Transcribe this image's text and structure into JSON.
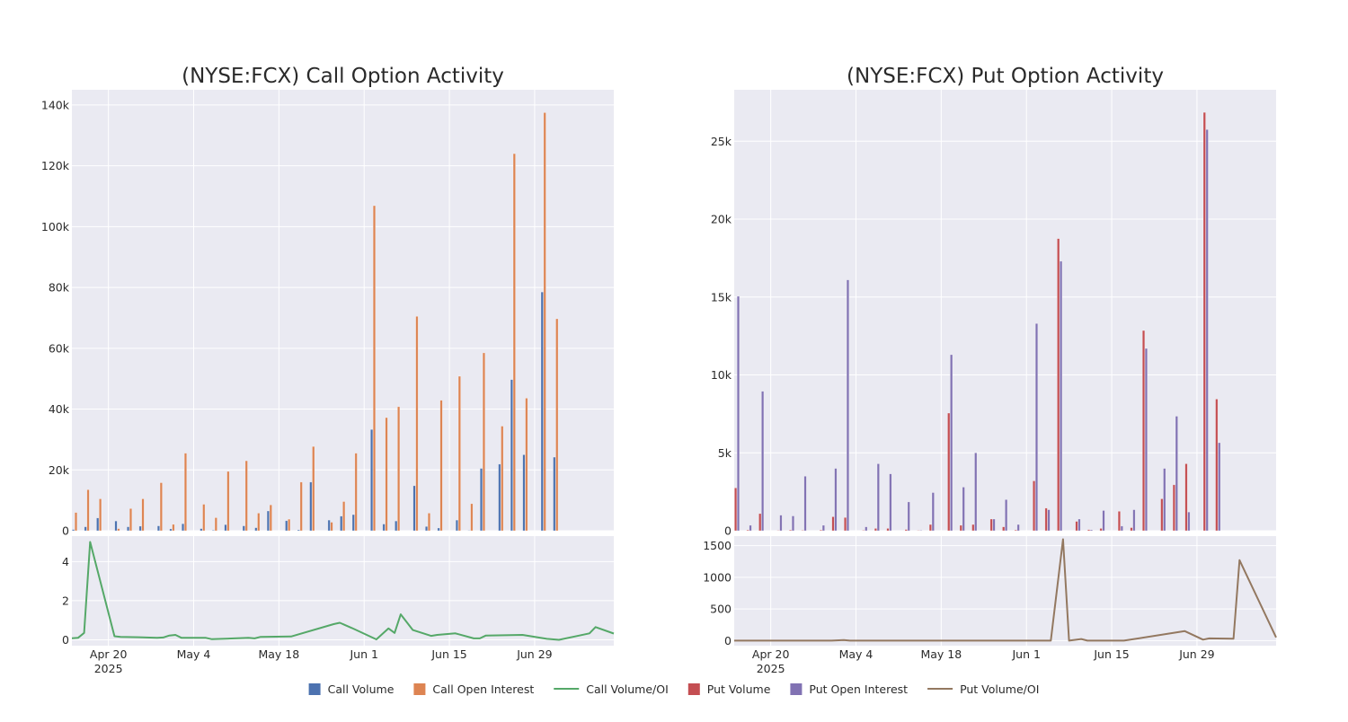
{
  "chart_data": [
    {
      "type": "bar",
      "title": "(NYSE:FCX) Call Option Activity",
      "ylim": [
        0,
        145000
      ],
      "yticks": [
        0,
        20000,
        40000,
        60000,
        80000,
        100000,
        120000,
        140000
      ],
      "ytick_labels": [
        "0",
        "20k",
        "40k",
        "60k",
        "80k",
        "100k",
        "120k",
        "140k"
      ],
      "x_range": [
        "2025-04-14",
        "2025-07-12"
      ],
      "xticks": [
        "2025-04-20",
        "2025-05-04",
        "2025-05-18",
        "2025-06-01",
        "2025-06-15",
        "2025-06-29"
      ],
      "xtick_labels": [
        "Apr 20",
        "May 4",
        "May 18",
        "Jun 1",
        "Jun 15",
        "Jun 29"
      ],
      "x_year_label": "2025",
      "grid": true,
      "dates": [
        "2025-04-14",
        "2025-04-16",
        "2025-04-18",
        "2025-04-21",
        "2025-04-23",
        "2025-04-25",
        "2025-04-28",
        "2025-04-30",
        "2025-05-02",
        "2025-05-05",
        "2025-05-07",
        "2025-05-09",
        "2025-05-12",
        "2025-05-14",
        "2025-05-16",
        "2025-05-19",
        "2025-05-21",
        "2025-05-23",
        "2025-05-26",
        "2025-05-28",
        "2025-05-30",
        "2025-06-02",
        "2025-06-04",
        "2025-06-06",
        "2025-06-09",
        "2025-06-11",
        "2025-06-13",
        "2025-06-16",
        "2025-06-18",
        "2025-06-20",
        "2025-06-23",
        "2025-06-25",
        "2025-06-27",
        "2025-06-30",
        "2025-07-02",
        "2025-07-04",
        "2025-07-07",
        "2025-07-09"
      ],
      "series": [
        {
          "name": "Call Volume",
          "color": "#4c72b0",
          "values": [
            400,
            1300,
            4200,
            3200,
            1300,
            1500,
            1600,
            600,
            2300,
            700,
            200,
            2000,
            1600,
            1000,
            6500,
            3300,
            300,
            16000,
            3500,
            4800,
            5300,
            33300,
            2200,
            3200,
            14800,
            1400,
            900,
            3500,
            100,
            20500,
            21900,
            49700,
            25000,
            78500,
            24200,
            0,
            0,
            0
          ]
        },
        {
          "name": "Call Open Interest",
          "color": "#dd8452",
          "values": [
            6000,
            13500,
            10500,
            700,
            7300,
            10500,
            15800,
            2100,
            25500,
            8700,
            4300,
            19500,
            23000,
            5800,
            8500,
            3800,
            16000,
            27700,
            2800,
            9600,
            25500,
            106900,
            37200,
            40800,
            70500,
            5800,
            42900,
            50800,
            8900,
            58500,
            34400,
            124000,
            43600,
            137500,
            69700,
            0,
            0,
            0
          ]
        }
      ],
      "sub": {
        "yticks": [
          0,
          2,
          4
        ],
        "ytick_labels": [
          "0",
          "2",
          "4"
        ],
        "ylim": [
          -0.3,
          5.3
        ],
        "series": {
          "name": "Call Volume/OI",
          "color": "#55a868",
          "dates": [
            "2025-04-14",
            "2025-04-15",
            "2025-04-16",
            "2025-04-17",
            "2025-04-21",
            "2025-04-22",
            "2025-04-25",
            "2025-04-28",
            "2025-04-29",
            "2025-04-30",
            "2025-05-01",
            "2025-05-02",
            "2025-05-06",
            "2025-05-07",
            "2025-05-13",
            "2025-05-14",
            "2025-05-15",
            "2025-05-20",
            "2025-05-27",
            "2025-05-28",
            "2025-05-30",
            "2025-06-03",
            "2025-06-05",
            "2025-06-06",
            "2025-06-07",
            "2025-06-09",
            "2025-06-12",
            "2025-06-13",
            "2025-06-16",
            "2025-06-19",
            "2025-06-20",
            "2025-06-21",
            "2025-06-27",
            "2025-07-01",
            "2025-07-03",
            "2025-07-08",
            "2025-07-09",
            "2025-07-12"
          ],
          "values": [
            0.08,
            0.1,
            0.35,
            5.0,
            0.18,
            0.15,
            0.13,
            0.1,
            0.12,
            0.22,
            0.25,
            0.1,
            0.1,
            0.03,
            0.1,
            0.07,
            0.15,
            0.17,
            0.8,
            0.87,
            0.6,
            0.02,
            0.58,
            0.35,
            1.3,
            0.5,
            0.2,
            0.25,
            0.33,
            0.07,
            0.07,
            0.22,
            0.25,
            0.05,
            0.0,
            0.33,
            0.65,
            0.32
          ]
        }
      }
    },
    {
      "type": "bar",
      "title": "(NYSE:FCX) Put Option Activity",
      "ylim": [
        0,
        28300
      ],
      "yticks": [
        0,
        5000,
        10000,
        15000,
        20000,
        25000
      ],
      "ytick_labels": [
        "0",
        "5k",
        "10k",
        "15k",
        "20k",
        "25k"
      ],
      "x_range": [
        "2025-04-14",
        "2025-07-12"
      ],
      "xticks": [
        "2025-04-20",
        "2025-05-04",
        "2025-05-18",
        "2025-06-01",
        "2025-06-15",
        "2025-06-29"
      ],
      "xtick_labels": [
        "Apr 20",
        "May 4",
        "May 18",
        "Jun 1",
        "Jun 15",
        "Jun 29"
      ],
      "x_year_label": "2025",
      "grid": true,
      "dates": [
        "2025-04-14",
        "2025-04-16",
        "2025-04-18",
        "2025-04-21",
        "2025-04-23",
        "2025-04-25",
        "2025-04-28",
        "2025-04-30",
        "2025-05-02",
        "2025-05-05",
        "2025-05-07",
        "2025-05-09",
        "2025-05-12",
        "2025-05-14",
        "2025-05-16",
        "2025-05-19",
        "2025-05-21",
        "2025-05-23",
        "2025-05-26",
        "2025-05-28",
        "2025-05-30",
        "2025-06-02",
        "2025-06-04",
        "2025-06-06",
        "2025-06-09",
        "2025-06-11",
        "2025-06-13",
        "2025-06-16",
        "2025-06-18",
        "2025-06-20",
        "2025-06-23",
        "2025-06-25",
        "2025-06-27",
        "2025-06-30",
        "2025-07-02",
        "2025-07-04",
        "2025-07-07",
        "2025-07-09"
      ],
      "series": [
        {
          "name": "Put Volume",
          "color": "#c44e52",
          "values": [
            2750,
            50,
            1100,
            20,
            50,
            30,
            50,
            900,
            850,
            30,
            150,
            150,
            80,
            20,
            400,
            7550,
            350,
            400,
            750,
            250,
            50,
            3200,
            1450,
            18750,
            600,
            70,
            150,
            1250,
            200,
            12850,
            2050,
            2950,
            4300,
            26850,
            8450,
            0,
            0,
            0
          ]
        },
        {
          "name": "Put Open Interest",
          "color": "#8172b3",
          "values": [
            15050,
            350,
            8950,
            1000,
            950,
            3500,
            350,
            4000,
            16100,
            250,
            4300,
            3650,
            1850,
            30,
            2450,
            11300,
            2800,
            5000,
            750,
            2000,
            400,
            13300,
            1350,
            17300,
            750,
            60,
            1300,
            300,
            1350,
            11700,
            4000,
            7350,
            1200,
            25750,
            5650,
            0,
            0,
            0
          ]
        }
      ],
      "sub": {
        "yticks": [
          0,
          500,
          1000,
          1500
        ],
        "ytick_labels": [
          "0",
          "500",
          "1000",
          "1500"
        ],
        "ylim": [
          -80,
          1650
        ],
        "series": {
          "name": "Put Volume/OI",
          "color": "#937860",
          "dates": [
            "2025-04-14",
            "2025-04-22",
            "2025-04-30",
            "2025-05-02",
            "2025-05-03",
            "2025-06-05",
            "2025-06-07",
            "2025-06-08",
            "2025-06-10",
            "2025-06-11",
            "2025-06-17",
            "2025-06-27",
            "2025-06-30",
            "2025-07-01",
            "2025-07-05",
            "2025-07-06",
            "2025-07-12"
          ],
          "values": [
            0,
            0,
            0,
            10,
            0,
            0,
            1600,
            0,
            25,
            0,
            0,
            150,
            15,
            35,
            30,
            1270,
            50
          ]
        }
      }
    }
  ],
  "legend": [
    {
      "label": "Call Volume",
      "kind": "box",
      "color": "#4c72b0"
    },
    {
      "label": "Call Open Interest",
      "kind": "box",
      "color": "#dd8452"
    },
    {
      "label": "Call Volume/OI",
      "kind": "line",
      "color": "#55a868"
    },
    {
      "label": "Put Volume",
      "kind": "box",
      "color": "#c44e52"
    },
    {
      "label": "Put Open Interest",
      "kind": "box",
      "color": "#8172b3"
    },
    {
      "label": "Put Volume/OI",
      "kind": "line",
      "color": "#937860"
    }
  ]
}
